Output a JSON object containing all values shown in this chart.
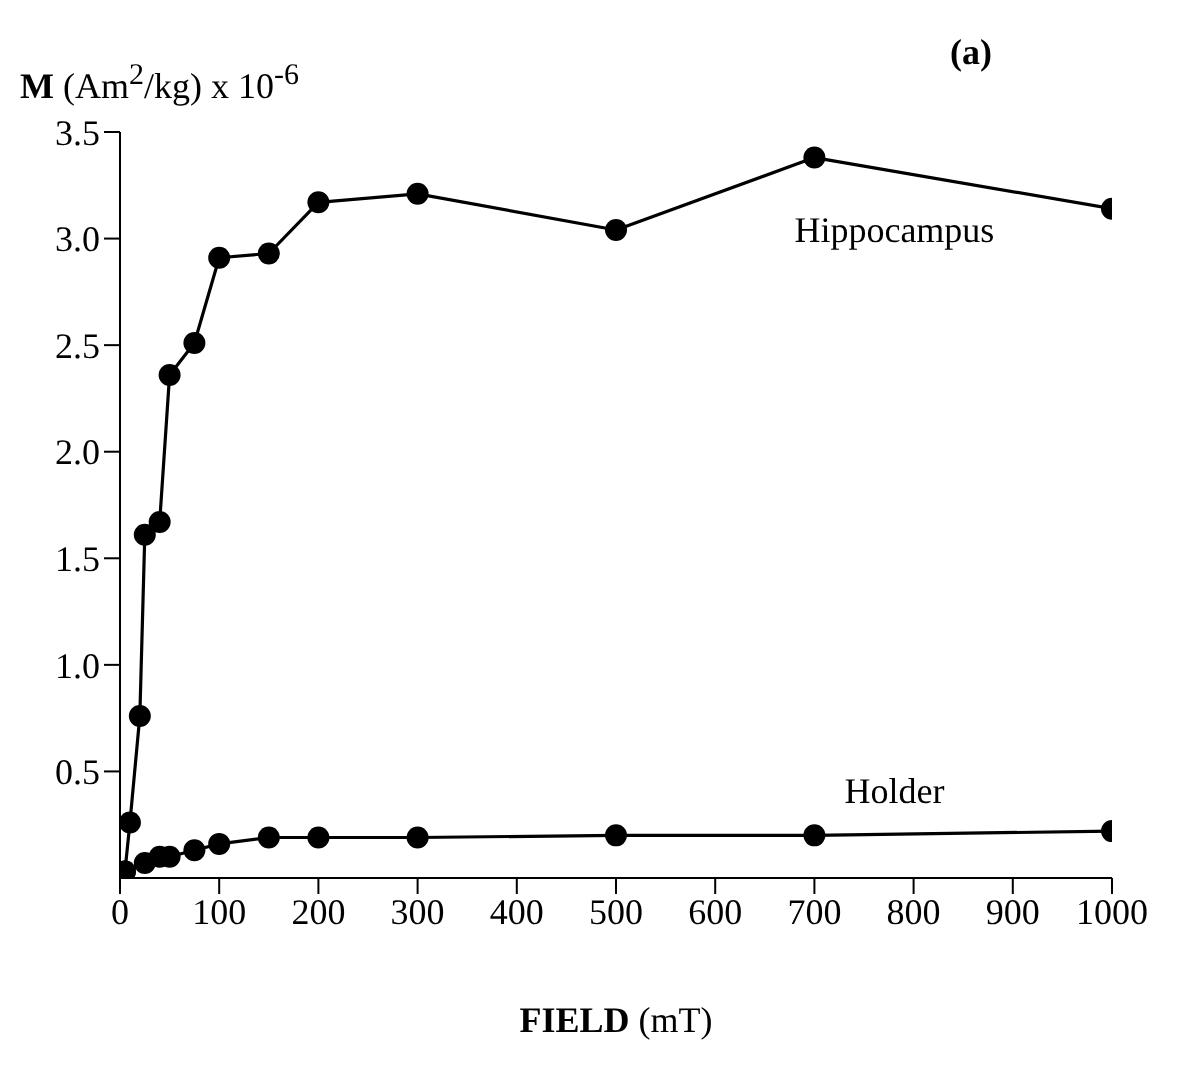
{
  "chart_data": {
    "type": "line",
    "title": "(a)",
    "xlabel": "FIELD (mT)",
    "ylabel": "M (Am$^{2}$/kg) x 10$^{-6}$",
    "x": [
      5,
      10,
      20,
      25,
      40,
      50,
      75,
      100,
      150,
      200,
      300,
      500,
      700,
      1000
    ],
    "series": [
      {
        "name": "Hippocampus",
        "color": "#000000",
        "values": [
          0.03,
          0.26,
          0.76,
          1.61,
          1.67,
          2.36,
          2.51,
          2.91,
          2.93,
          3.17,
          3.21,
          3.04,
          3.38,
          3.14
        ]
      },
      {
        "name": "Holder",
        "color": "#000000",
        "x": [
          5,
          25,
          40,
          50,
          75,
          100,
          150,
          200,
          300,
          500,
          700,
          1000
        ],
        "values": [
          0.03,
          0.07,
          0.1,
          0.1,
          0.13,
          0.16,
          0.19,
          0.19,
          0.19,
          0.2,
          0.2,
          0.22
        ]
      }
    ],
    "xlim": [
      0,
      1000
    ],
    "xticks": [
      0,
      100,
      200,
      300,
      400,
      500,
      600,
      700,
      800,
      900,
      1000
    ],
    "ylim": [
      0,
      3.5
    ],
    "yticks": [
      0.5,
      {
        "value": 1,
        "label": "1.0"
      },
      1.5,
      {
        "value": 2,
        "label": "2.0"
      },
      2.5,
      {
        "value": 3,
        "label": "3.0"
      },
      3.5
    ],
    "grid": false,
    "legend": false,
    "marker": "circle",
    "line_style": "solid"
  }
}
